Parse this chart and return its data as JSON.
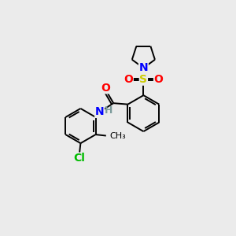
{
  "background_color": "#ebebeb",
  "bond_color": "#000000",
  "N_color": "#0000ff",
  "O_color": "#ff0000",
  "S_color": "#cccc00",
  "Cl_color": "#00bb00",
  "H_color": "#7a9a9a",
  "figsize": [
    3.0,
    3.0
  ],
  "dpi": 100,
  "xlim": [
    0,
    10
  ],
  "ylim": [
    0,
    10
  ]
}
